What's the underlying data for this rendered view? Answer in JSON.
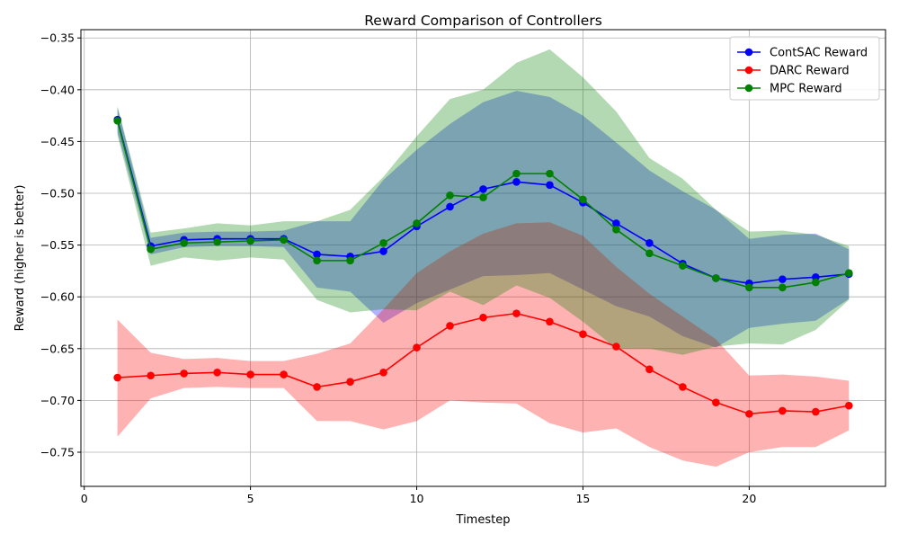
{
  "chart_data": {
    "type": "line",
    "title": "Reward Comparison of Controllers",
    "xlabel": "Timestep",
    "ylabel": "Reward (higher is better)",
    "xlim": [
      -0.1,
      24.1
    ],
    "ylim": [
      -0.783,
      -0.342
    ],
    "xticks": [
      0,
      5,
      10,
      15,
      20
    ],
    "yticks": [
      -0.75,
      -0.7,
      -0.65,
      -0.6,
      -0.55,
      -0.5,
      -0.45,
      -0.4,
      -0.35
    ],
    "ytick_labels": [
      "−0.75",
      "−0.70",
      "−0.65",
      "−0.60",
      "−0.55",
      "−0.50",
      "−0.45",
      "−0.40",
      "−0.35"
    ],
    "grid": true,
    "legend_position": "top-right",
    "x": [
      1,
      2,
      3,
      4,
      5,
      6,
      7,
      8,
      9,
      10,
      11,
      12,
      13,
      14,
      15,
      16,
      17,
      18,
      19,
      20,
      21,
      22,
      23
    ],
    "series": [
      {
        "name": "ContSAC Reward",
        "color": "#0000ff",
        "values": [
          -0.429,
          -0.551,
          -0.545,
          -0.544,
          -0.544,
          -0.544,
          -0.559,
          -0.561,
          -0.556,
          -0.532,
          -0.513,
          -0.496,
          -0.489,
          -0.492,
          -0.509,
          -0.529,
          -0.548,
          -0.568,
          -0.582,
          -0.587,
          -0.583,
          -0.581,
          -0.578
        ],
        "upper": [
          -0.417,
          -0.543,
          -0.538,
          -0.537,
          -0.537,
          -0.536,
          -0.527,
          -0.527,
          -0.487,
          -0.458,
          -0.433,
          -0.412,
          -0.401,
          -0.407,
          -0.425,
          -0.451,
          -0.478,
          -0.498,
          -0.516,
          -0.544,
          -0.54,
          -0.539,
          -0.554
        ],
        "lower": [
          -0.441,
          -0.559,
          -0.552,
          -0.551,
          -0.551,
          -0.552,
          -0.591,
          -0.595,
          -0.625,
          -0.606,
          -0.593,
          -0.58,
          -0.579,
          -0.577,
          -0.593,
          -0.609,
          -0.619,
          -0.638,
          -0.649,
          -0.63,
          -0.626,
          -0.623,
          -0.602
        ]
      },
      {
        "name": "DARC Reward",
        "color": "#ff0000",
        "values": [
          -0.678,
          -0.676,
          -0.674,
          -0.673,
          -0.675,
          -0.675,
          -0.687,
          -0.682,
          -0.673,
          -0.649,
          -0.628,
          -0.62,
          -0.616,
          -0.624,
          -0.636,
          -0.648,
          -0.67,
          -0.687,
          -0.702,
          -0.713,
          -0.71,
          -0.711,
          -0.705
        ],
        "upper": [
          -0.622,
          -0.654,
          -0.66,
          -0.659,
          -0.662,
          -0.662,
          -0.655,
          -0.645,
          -0.612,
          -0.577,
          -0.556,
          -0.539,
          -0.529,
          -0.528,
          -0.541,
          -0.571,
          -0.597,
          -0.619,
          -0.641,
          -0.676,
          -0.675,
          -0.677,
          -0.681
        ],
        "lower": [
          -0.735,
          -0.698,
          -0.688,
          -0.687,
          -0.688,
          -0.688,
          -0.72,
          -0.72,
          -0.728,
          -0.72,
          -0.7,
          -0.702,
          -0.703,
          -0.722,
          -0.731,
          -0.727,
          -0.745,
          -0.758,
          -0.764,
          -0.75,
          -0.745,
          -0.745,
          -0.729
        ]
      },
      {
        "name": "MPC Reward",
        "color": "#008000",
        "values": [
          -0.43,
          -0.554,
          -0.548,
          -0.547,
          -0.546,
          -0.545,
          -0.565,
          -0.565,
          -0.548,
          -0.529,
          -0.502,
          -0.504,
          -0.481,
          -0.481,
          -0.506,
          -0.535,
          -0.558,
          -0.57,
          -0.582,
          -0.591,
          -0.591,
          -0.586,
          -0.577
        ],
        "upper": [
          -0.416,
          -0.538,
          -0.534,
          -0.529,
          -0.531,
          -0.527,
          -0.527,
          -0.516,
          -0.484,
          -0.445,
          -0.409,
          -0.4,
          -0.374,
          -0.361,
          -0.388,
          -0.421,
          -0.466,
          -0.486,
          -0.516,
          -0.537,
          -0.536,
          -0.54,
          -0.551
        ],
        "lower": [
          -0.444,
          -0.57,
          -0.562,
          -0.565,
          -0.562,
          -0.564,
          -0.603,
          -0.615,
          -0.612,
          -0.613,
          -0.595,
          -0.608,
          -0.589,
          -0.601,
          -0.624,
          -0.65,
          -0.65,
          -0.656,
          -0.648,
          -0.645,
          -0.646,
          -0.632,
          -0.603
        ]
      }
    ]
  }
}
